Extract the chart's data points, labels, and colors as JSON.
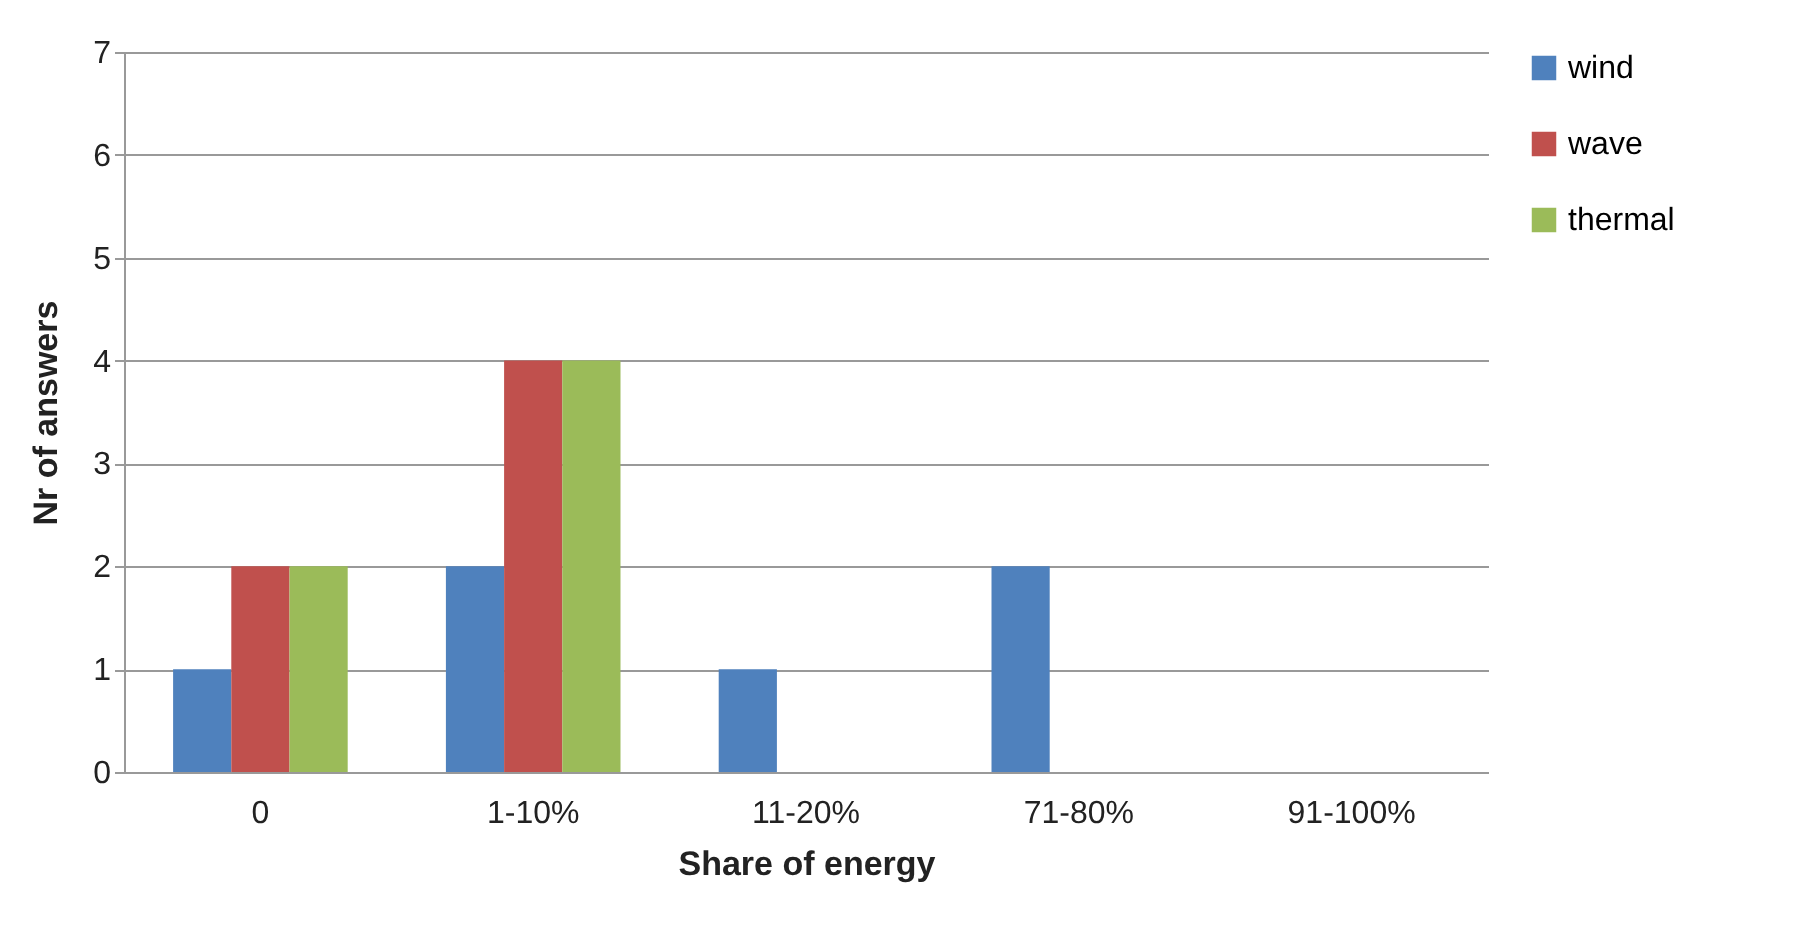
{
  "chart_data": {
    "type": "bar",
    "xlabel": "Share of energy",
    "ylabel": "Nr of answers",
    "categories": [
      "0",
      "1-10%",
      "11-20%",
      "71-80%",
      "91-100%"
    ],
    "series": [
      {
        "name": "wind",
        "color": "#4f81bd",
        "values": [
          1,
          2,
          1,
          2,
          0
        ]
      },
      {
        "name": "wave",
        "color": "#c0504d",
        "values": [
          2,
          4,
          0,
          0,
          0
        ]
      },
      {
        "name": "thermal",
        "color": "#9bbb59",
        "values": [
          2,
          4,
          0,
          0,
          0
        ]
      }
    ],
    "ylim": [
      0,
      7
    ],
    "yticks": [
      0,
      1,
      2,
      3,
      4,
      5,
      6,
      7
    ],
    "grid": "y",
    "legend": "right"
  }
}
